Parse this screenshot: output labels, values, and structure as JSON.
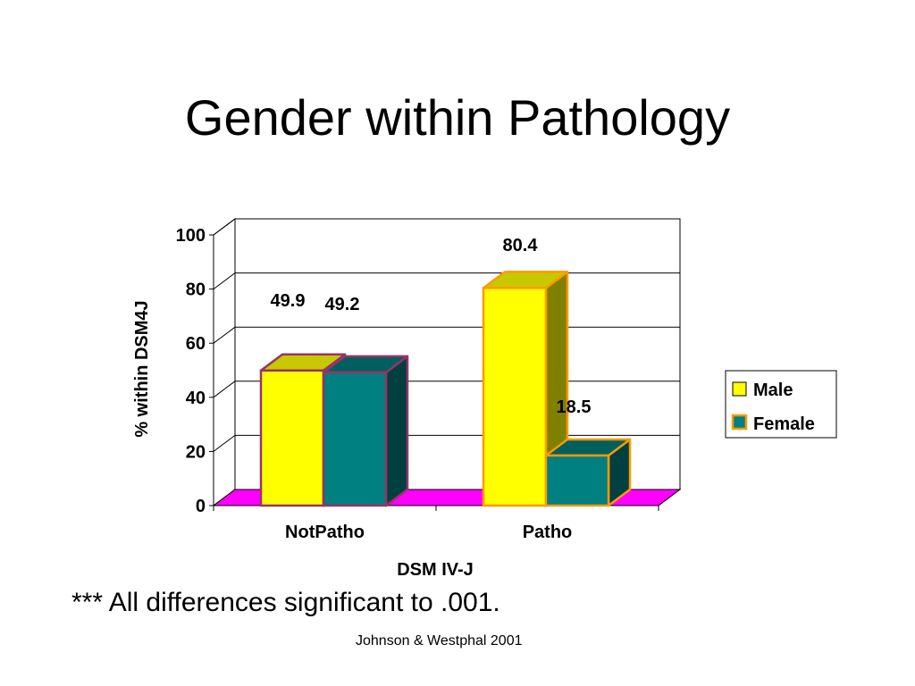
{
  "slide": {
    "title": "Gender within Pathology",
    "footnote": "*** All differences significant to .001.",
    "citation": "Johnson & Westphal 2001"
  },
  "chart_data": {
    "type": "bar",
    "style": "3d-clustered-column",
    "title": "",
    "xlabel": "DSM IV-J",
    "ylabel": "% within DSM4J",
    "categories": [
      "NotPatho",
      "Patho"
    ],
    "series": [
      {
        "name": "Male",
        "values": [
          49.9,
          80.4
        ],
        "data_labels": [
          "49.9",
          "80.4"
        ],
        "fill": "#FFFF00",
        "top": "#C8C800",
        "side": "#808000"
      },
      {
        "name": "Female",
        "values": [
          49.2,
          18.5
        ],
        "data_labels": [
          "49.2",
          "18.5"
        ],
        "fill": "#008080",
        "top": "#006060",
        "side": "#004040"
      }
    ],
    "category_outline_colors": [
      "#993366",
      "#FF9900"
    ],
    "ylim": [
      0,
      100
    ],
    "yticks": [
      0,
      20,
      40,
      60,
      80,
      100
    ],
    "grid": true,
    "floor_color": "#FF00FF",
    "legend": {
      "position": "right",
      "entries": [
        "Male",
        "Female"
      ]
    }
  }
}
